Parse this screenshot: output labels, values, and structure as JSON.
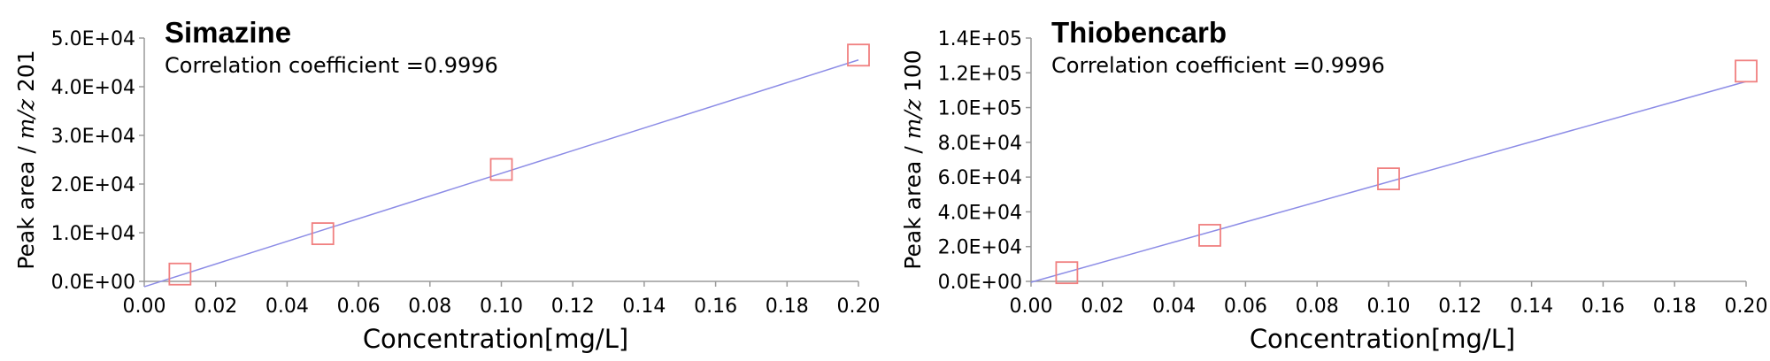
{
  "chart_data": [
    {
      "type": "scatter",
      "title": "Simazine",
      "annotation": "Correlation coefficient =0.9996",
      "xlabel": "Concentration[mg/L]",
      "ylabel_prefix": "Peak area / ",
      "ylabel_mz": "m/z",
      "ylabel_suffix": " 201",
      "xlim": [
        0,
        0.2
      ],
      "ylim": [
        0,
        50000
      ],
      "x_ticks": [
        "0.00",
        "0.02",
        "0.04",
        "0.06",
        "0.08",
        "0.10",
        "0.12",
        "0.14",
        "0.16",
        "0.18",
        "0.20"
      ],
      "y_ticks": [
        "0.0E+00",
        "1.0E+04",
        "2.0E+04",
        "3.0E+04",
        "4.0E+04",
        "5.0E+04"
      ],
      "grid": false,
      "points": {
        "x": [
          0.01,
          0.05,
          0.1,
          0.2
        ],
        "y": [
          1500,
          9800,
          23000,
          46500
        ]
      },
      "fit_line": {
        "x": [
          0.0,
          0.2
        ],
        "y": [
          -1100,
          45500
        ]
      },
      "marker_color": "#f08080",
      "line_color": "#8c8ce6"
    },
    {
      "type": "scatter",
      "title": "Thiobencarb",
      "annotation": "Correlation coefficient =0.9996",
      "xlabel": "Concentration[mg/L]",
      "ylabel_prefix": "Peak area / ",
      "ylabel_mz": "m/z",
      "ylabel_suffix": " 100",
      "xlim": [
        0,
        0.2
      ],
      "ylim": [
        0,
        140000
      ],
      "x_ticks": [
        "0.00",
        "0.02",
        "0.04",
        "0.06",
        "0.08",
        "0.10",
        "0.12",
        "0.14",
        "0.16",
        "0.18",
        "0.20"
      ],
      "y_ticks": [
        "0.0E+00",
        "2.0E+04",
        "4.0E+04",
        "6.0E+04",
        "8.0E+04",
        "1.0E+05",
        "1.2E+05",
        "1.4E+05"
      ],
      "grid": false,
      "points": {
        "x": [
          0.01,
          0.05,
          0.1,
          0.2
        ],
        "y": [
          5000,
          26500,
          59000,
          121000
        ]
      },
      "fit_line": {
        "x": [
          0.0,
          0.2
        ],
        "y": [
          -500,
          115000
        ]
      },
      "marker_color": "#f08080",
      "line_color": "#8c8ce6"
    }
  ]
}
